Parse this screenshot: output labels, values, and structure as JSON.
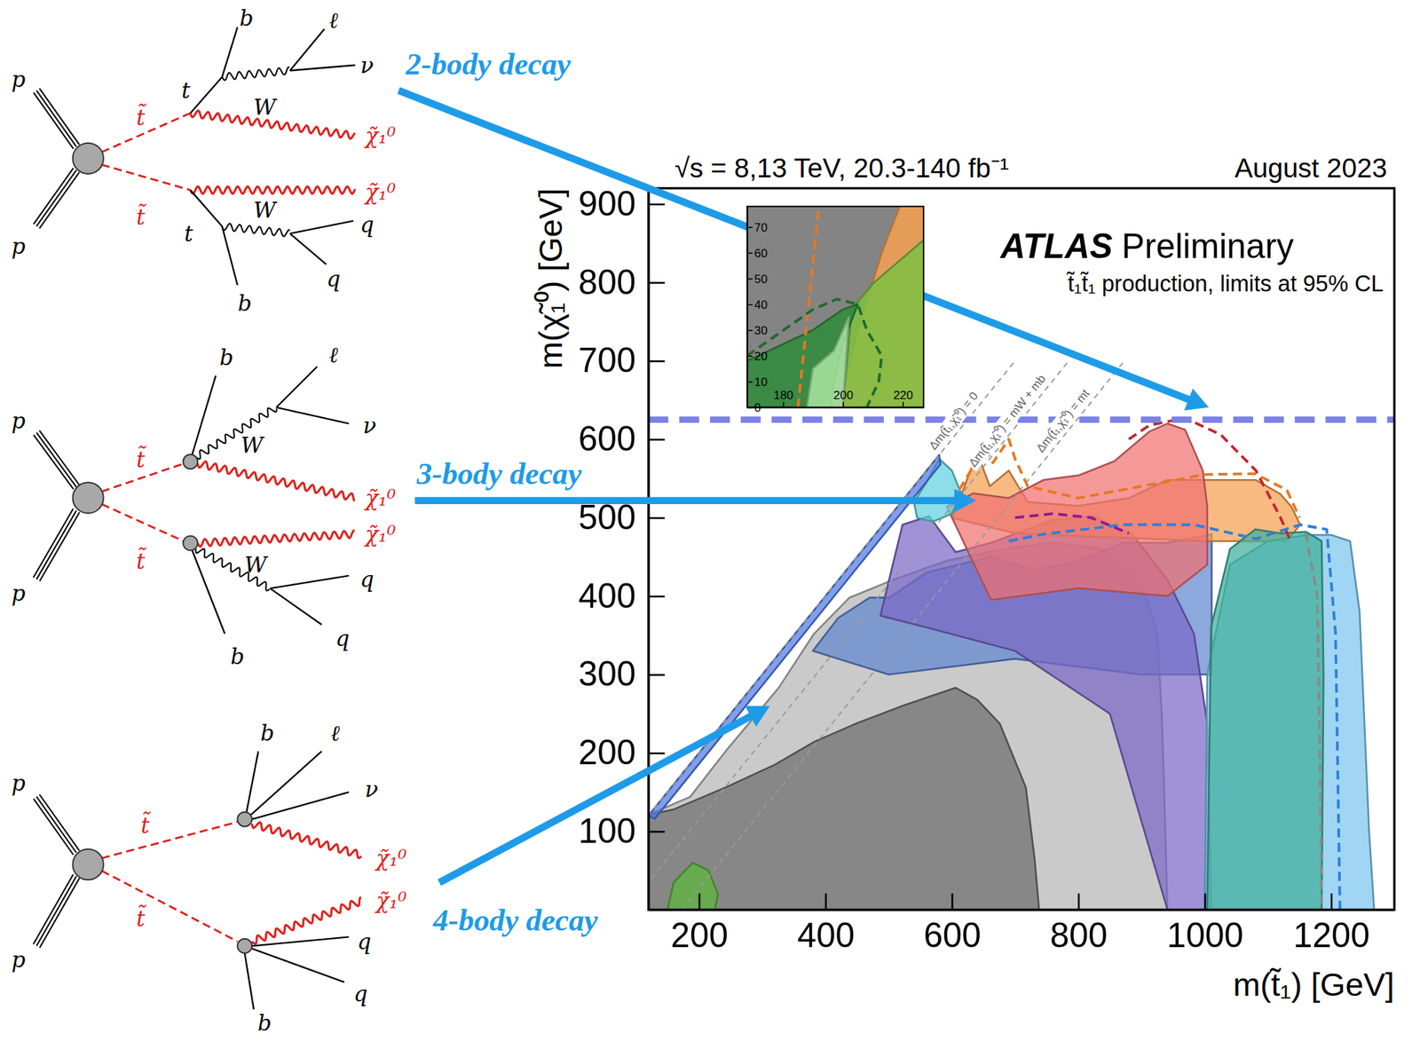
{
  "chart_data": [
    {
      "type": "contour",
      "title": "t̃₁t̃₁ production, limits at 95% CL",
      "experiment": "ATLAS",
      "status": "Preliminary",
      "energy": "√s = 8,13 TeV, 20.3-140 fb⁻¹",
      "date": "August 2023",
      "x_label": "m(t̃₁) [GeV]",
      "y_label": "m(χ̃₁⁰) [GeV]",
      "xlim": [
        120,
        1300
      ],
      "ylim": [
        0,
        920
      ],
      "xticks": [
        200,
        400,
        600,
        800,
        1000,
        1200
      ],
      "yticks": [
        100,
        200,
        300,
        400,
        500,
        600,
        700,
        800,
        900
      ],
      "highlight_y": 625,
      "kinematic_lines": [
        {
          "label": "Δm(t̃₁,χ̃₁⁰) = 0",
          "delta_m": 0
        },
        {
          "label": "Δm(t̃₁,χ̃₁⁰) = mW + mb",
          "delta_m": 85
        },
        {
          "label": "Δm(t̃₁,χ̃₁⁰) = mt",
          "delta_m": 173
        }
      ],
      "series": [
        {
          "type": "area",
          "color": "#b5b5b5",
          "line_style": "solid",
          "x": [
            120,
            186,
            242,
            326,
            382,
            438,
            508,
            592,
            680,
            760,
            840,
            900,
            925,
            932,
            936,
            941,
            120
          ],
          "y": [
            121,
            144,
            202,
            283,
            352,
            398,
            421,
            445,
            460,
            468,
            460,
            420,
            352,
            250,
            150,
            0,
            0
          ]
        },
        {
          "type": "area",
          "color": "#6e6e6e",
          "line_style": "solid",
          "x": [
            120,
            120,
            160,
            242,
            320,
            382,
            450,
            522,
            580,
            606,
            640,
            676,
            717,
            731,
            738
          ],
          "y": [
            0,
            121,
            128,
            156,
            185,
            214,
            238,
            260,
            276,
            283,
            268,
            237,
            156,
            64,
            0
          ]
        },
        {
          "type": "area",
          "color": "#5f86d0",
          "line_style": "solid",
          "x": [
            380,
            420,
            470,
            501,
            560,
            662,
            731,
            801,
            871,
            941,
            1011,
            1011,
            900,
            700,
            500
          ],
          "y": [
            330,
            372,
            398,
            398,
            430,
            450,
            433,
            445,
            468,
            468,
            479,
            300,
            300,
            320,
            300
          ]
        },
        {
          "type": "area",
          "color": "#7b68c8",
          "line_style": "solid",
          "x": [
            487,
            508,
            522,
            564,
            606,
            662,
            759,
            822,
            885,
            941,
            983,
            1004,
            1011,
            941,
            850,
            700,
            560
          ],
          "y": [
            375,
            445,
            491,
            502,
            456,
            468,
            497,
            502,
            479,
            421,
            352,
            237,
            0,
            0,
            250,
            330,
            360
          ]
        },
        {
          "type": "area",
          "color": "#f5a050",
          "line_style": "solid",
          "x": [
            600,
            620,
            640,
            660,
            690,
            720,
            800,
            880,
            941,
            1011,
            1081,
            1120,
            1137,
            1151,
            1130,
            1000,
            700
          ],
          "y": [
            500,
            540,
            583,
            540,
            560,
            520,
            515,
            525,
            548,
            548,
            548,
            530,
            514,
            491,
            470,
            470,
            480
          ]
        },
        {
          "type": "area",
          "color": "#f07070",
          "line_style": "solid",
          "x": [
            592,
            634,
            690,
            745,
            801,
            857,
            913,
            941,
            969,
            997,
            1004,
            1004,
            941,
            801,
            662
          ],
          "y": [
            514,
            531,
            525,
            548,
            554,
            572,
            610,
            620,
            612,
            560,
            514,
            440,
            400,
            410,
            395
          ]
        },
        {
          "type": "area",
          "color": "#7cc6f0",
          "line_style": "solid",
          "x": [
            1000,
            1004,
            1040,
            1100,
            1160,
            1200,
            1230,
            1245,
            1252,
            1260,
            1268
          ],
          "y": [
            0,
            300,
            440,
            470,
            478,
            478,
            470,
            380,
            250,
            100,
            0
          ]
        },
        {
          "type": "area",
          "color": "#3fae9a",
          "line_style": "solid",
          "x": [
            1004,
            1010,
            1040,
            1080,
            1120,
            1160,
            1185,
            1188,
            1186,
            1185
          ],
          "y": [
            0,
            360,
            460,
            485,
            480,
            482,
            470,
            300,
            100,
            0
          ]
        },
        {
          "type": "area",
          "color": "#5fd3e0",
          "line_style": "solid",
          "x": [
            540,
            560,
            580,
            600,
            615,
            600,
            570,
            545
          ],
          "y": [
            520,
            545,
            575,
            560,
            530,
            505,
            495,
            500
          ]
        },
        {
          "type": "area",
          "color": "#4f7be8",
          "line_style": "solid",
          "x": [
            120,
            580,
            582,
            130
          ],
          "y": [
            120,
            580,
            568,
            116
          ]
        },
        {
          "type": "area",
          "color": "#5cb83a",
          "line_style": "solid",
          "x": [
            150,
            160,
            190,
            215,
            230,
            225
          ],
          "y": [
            0,
            35,
            60,
            50,
            20,
            0
          ]
        },
        {
          "type": "line",
          "color": "#c0282c",
          "line_style": "dashed",
          "x": [
            880,
            913,
            969,
            1025,
            1081,
            1120,
            1137
          ],
          "y": [
            600,
            618,
            627,
            606,
            560,
            500,
            468
          ]
        },
        {
          "type": "line",
          "color": "#e8781e",
          "line_style": "dashed",
          "x": [
            600,
            630,
            648,
            665,
            690,
            700,
            720,
            800,
            900,
            1000,
            1080,
            1130,
            1150
          ],
          "y": [
            520,
            560,
            595,
            570,
            600,
            575,
            540,
            525,
            540,
            555,
            556,
            535,
            500
          ]
        },
        {
          "type": "line",
          "color": "#2f7fd8",
          "line_style": "dashed",
          "x": [
            690,
            745,
            871,
            983,
            1081,
            1151,
            1193,
            1207,
            1214
          ],
          "y": [
            470,
            479,
            491,
            491,
            473,
            491,
            485,
            352,
            0
          ]
        },
        {
          "type": "line",
          "color": "#8a8a8a",
          "line_style": "dashed",
          "x": [
            1160,
            1178,
            1182,
            1185
          ],
          "y": [
            480,
            400,
            200,
            0
          ]
        },
        {
          "type": "line",
          "color": "#8b1a9a",
          "line_style": "dashed",
          "x": [
            700,
            760,
            820,
            880
          ],
          "y": [
            500,
            505,
            500,
            480
          ]
        }
      ]
    },
    {
      "type": "contour",
      "xlim": [
        168,
        227
      ],
      "ylim": [
        0,
        78
      ],
      "xticks": [
        180,
        200,
        220
      ],
      "yticks": [
        0,
        10,
        20,
        30,
        40,
        50,
        60,
        70
      ],
      "series": [
        {
          "type": "area",
          "color": "#6e6e6e",
          "line_style": "solid",
          "x": [
            168,
            168,
            227,
            227
          ],
          "y": [
            0,
            78,
            78,
            0
          ]
        },
        {
          "type": "area",
          "color": "#f5a050",
          "line_style": "solid",
          "x": [
            199,
            205,
            213,
            219,
            227,
            227
          ],
          "y": [
            0,
            30,
            60,
            78,
            78,
            0
          ]
        },
        {
          "type": "area",
          "color": "#7cc242",
          "line_style": "solid",
          "x": [
            200,
            203,
            210,
            220,
            227,
            227
          ],
          "y": [
            0,
            38,
            48,
            58,
            65,
            0
          ]
        },
        {
          "type": "area",
          "color": "#2e8b3a",
          "line_style": "solid",
          "x": [
            168,
            168,
            190,
            200,
            205,
            200,
            197,
            196
          ],
          "y": [
            0,
            18,
            30,
            38,
            40,
            25,
            10,
            0
          ]
        },
        {
          "type": "area",
          "color": "#a8e6a0",
          "line_style": "solid",
          "x": [
            188,
            190,
            197,
            202,
            200
          ],
          "y": [
            0,
            15,
            22,
            35,
            0
          ]
        },
        {
          "type": "line",
          "color": "#e8781e",
          "line_style": "dashed",
          "x": [
            185,
            192
          ],
          "y": [
            0,
            78
          ]
        },
        {
          "type": "line",
          "color": "#1d6b2a",
          "line_style": "dashed",
          "x": [
            168,
            190,
            198,
            205,
            208,
            213,
            212,
            208
          ],
          "y": [
            20,
            38,
            42,
            40,
            30,
            20,
            10,
            0
          ]
        }
      ]
    }
  ],
  "annotations": [
    "2-body decay",
    "3-body decay",
    "4-body decay"
  ],
  "diagrams": [
    {
      "labels": [
        "p",
        "p",
        "t̃",
        "t̃",
        "t",
        "b",
        "W",
        "ℓ",
        "ν",
        "χ̃₁⁰",
        "χ̃₁⁰",
        "t",
        "W",
        "q",
        "q",
        "b"
      ]
    },
    {
      "labels": [
        "p",
        "p",
        "t̃",
        "t̃",
        "b",
        "W",
        "ℓ",
        "ν",
        "χ̃₁⁰",
        "χ̃₁⁰",
        "W",
        "q",
        "q",
        "b"
      ]
    },
    {
      "labels": [
        "p",
        "p",
        "t̃",
        "t̃",
        "b",
        "ℓ",
        "ν",
        "χ̃₁⁰",
        "χ̃₁⁰",
        "q",
        "q",
        "b"
      ]
    }
  ]
}
